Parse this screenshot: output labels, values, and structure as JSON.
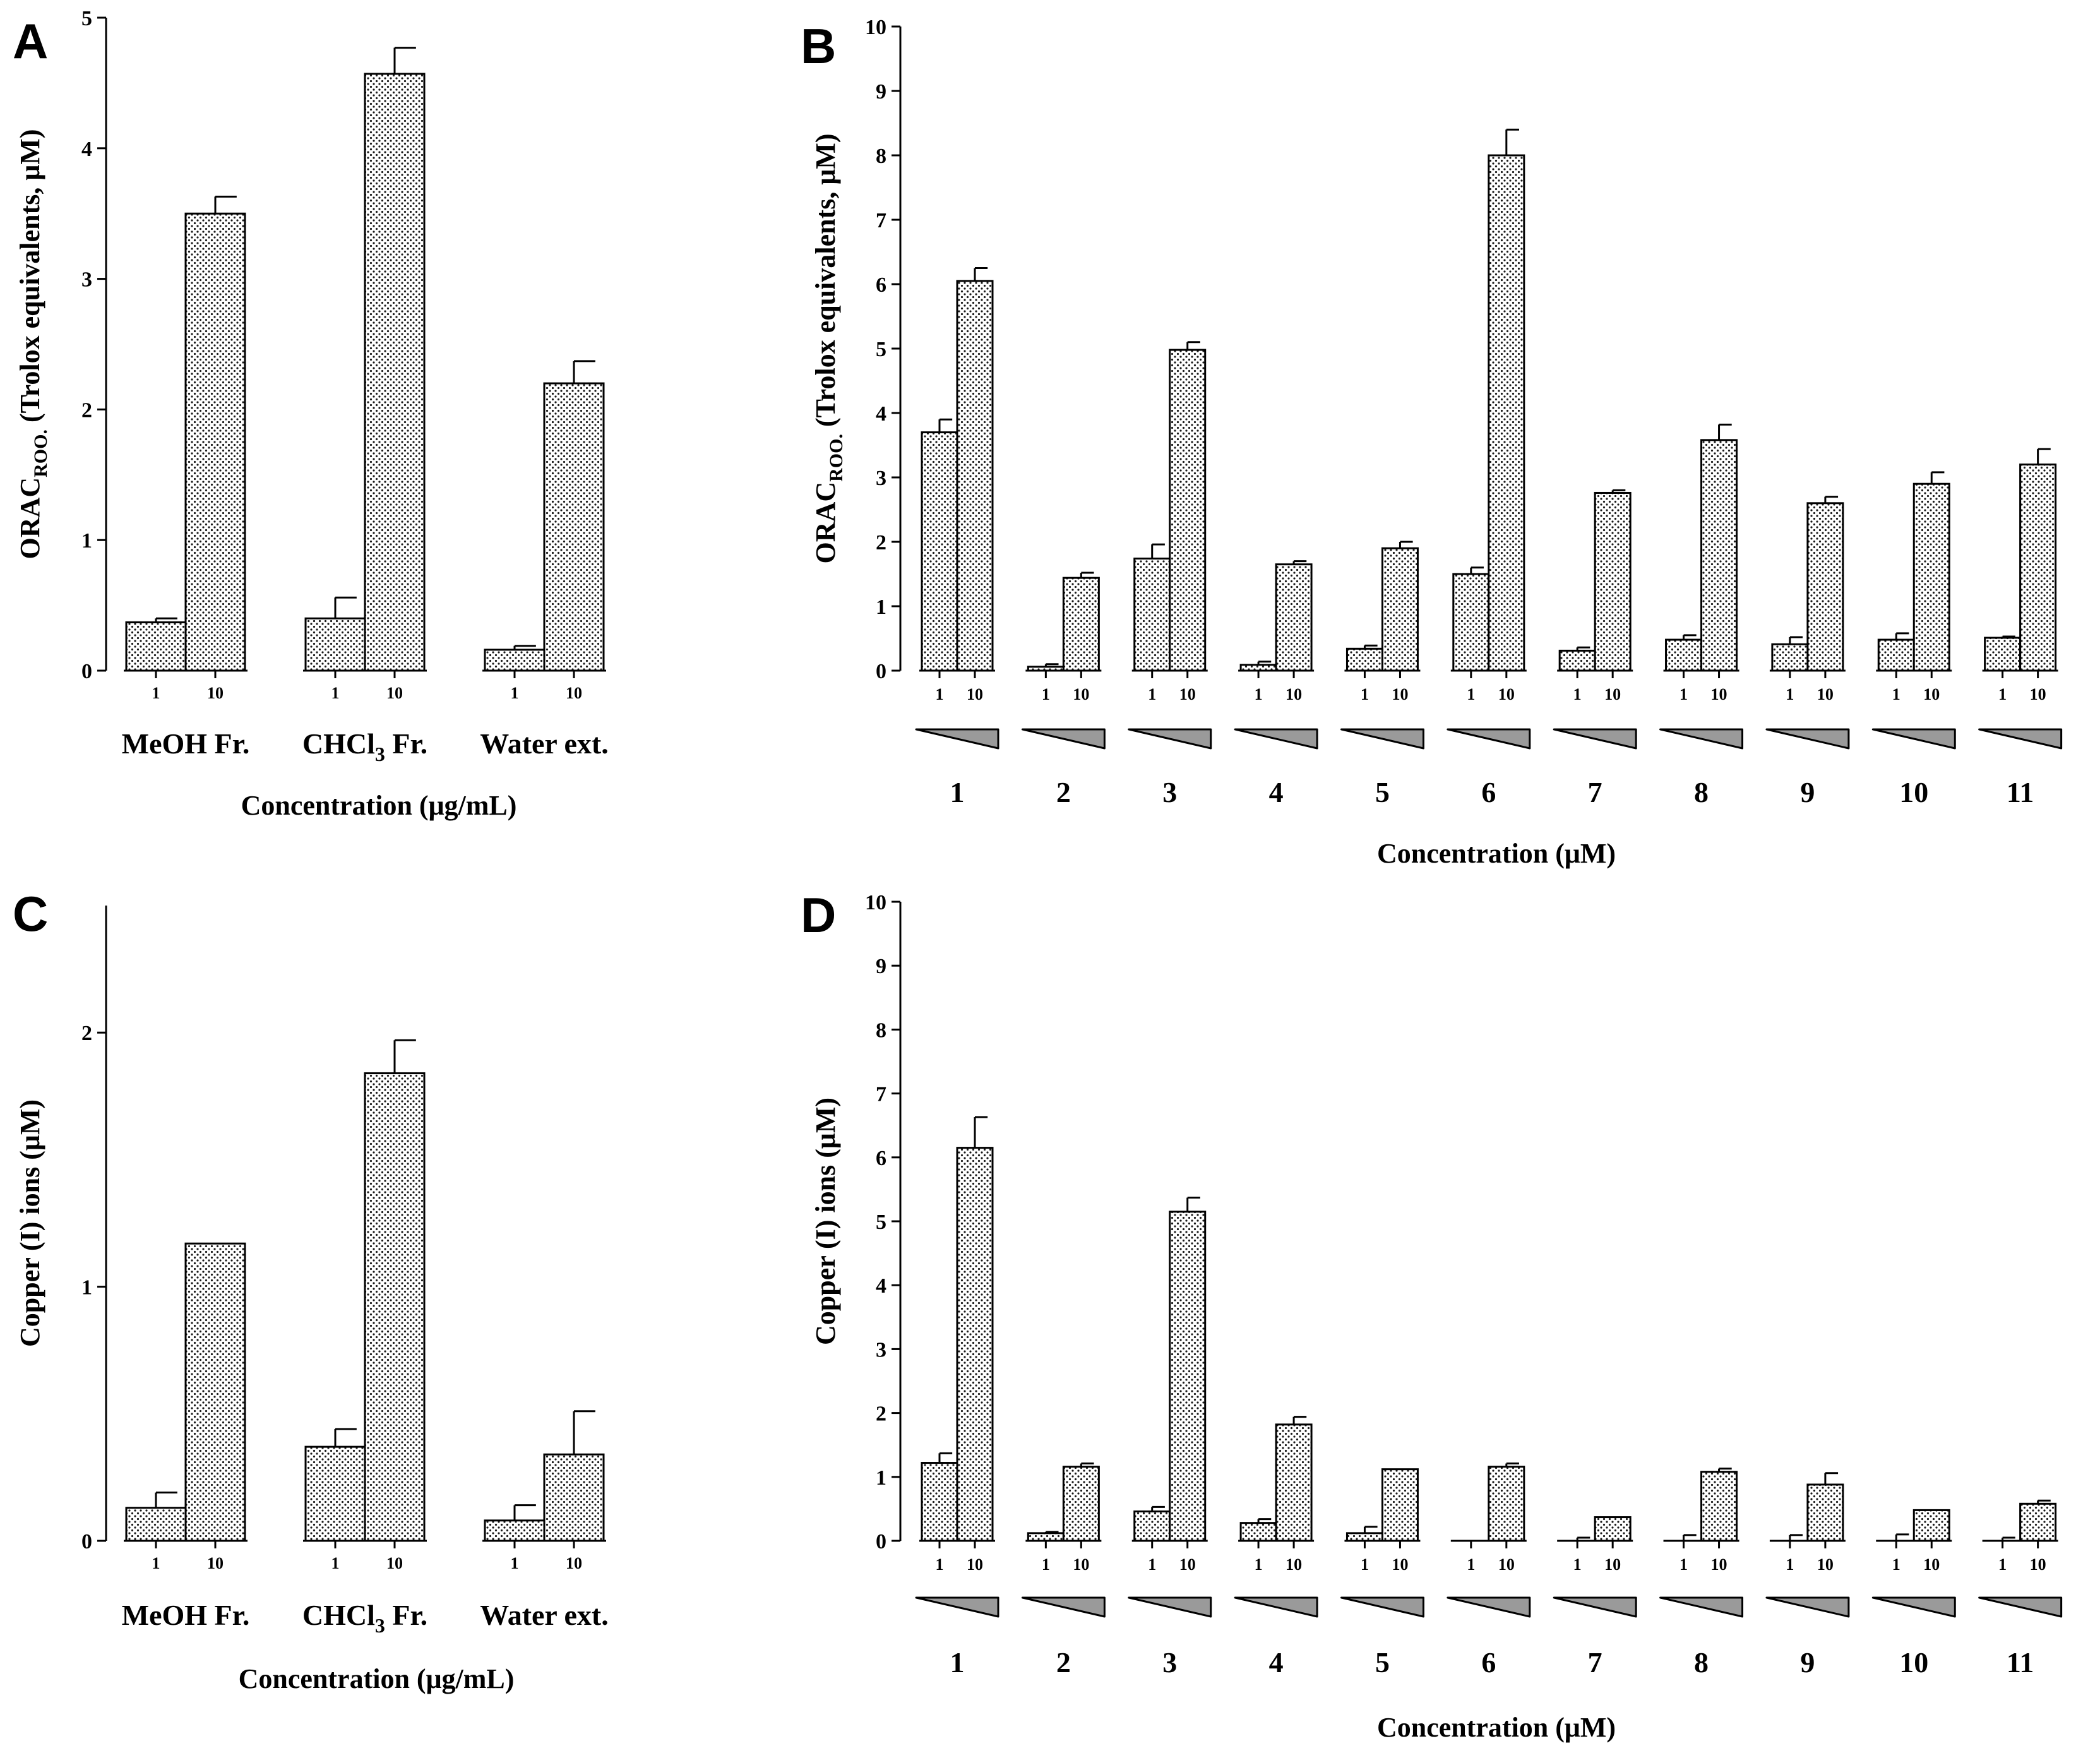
{
  "chart_data": [
    {
      "panel": "A",
      "type": "bar",
      "ylabel": "ORAC ROO. (Trolox equivalents, μM)",
      "ylabel_main": "ORAC",
      "ylabel_sub": "ROO.",
      "ylabel_rest": " (Trolox equivalents, μM)",
      "xlabel": "Concentration (μg/mL)",
      "ylim": [
        0,
        5
      ],
      "yticks": [
        0,
        1,
        2,
        3,
        4,
        5
      ],
      "levels": [
        "1",
        "10"
      ],
      "groups": [
        {
          "label": "MeOH Fr.",
          "label_main": "MeOH Fr.",
          "label_sub": "",
          "label_rest": "",
          "values": [
            0.37,
            3.5
          ],
          "errors": [
            0.03,
            0.13
          ]
        },
        {
          "label": "CHCl3 Fr.",
          "label_main": "CHCl",
          "label_sub": "3",
          "label_rest": " Fr.",
          "values": [
            0.4,
            4.57
          ],
          "errors": [
            0.16,
            0.2
          ]
        },
        {
          "label": "Water ext.",
          "label_main": "Water ext.",
          "label_sub": "",
          "label_rest": "",
          "values": [
            0.16,
            2.2
          ],
          "errors": [
            0.03,
            0.17
          ]
        }
      ]
    },
    {
      "panel": "B",
      "type": "bar",
      "ylabel": "ORAC ROO. (Trolox equivalents, μM)",
      "ylabel_main": "ORAC",
      "ylabel_sub": "ROO.",
      "ylabel_rest": " (Trolox equivalents, μM)",
      "xlabel": "Concentration (μM)",
      "ylim": [
        0,
        10
      ],
      "yticks": [
        0,
        1,
        2,
        3,
        4,
        5,
        6,
        7,
        8,
        9,
        10
      ],
      "levels": [
        "1",
        "10"
      ],
      "groups": [
        {
          "label": "1",
          "label_main": "1",
          "label_sub": "",
          "label_rest": "",
          "values": [
            3.7,
            6.05
          ],
          "errors": [
            0.2,
            0.2
          ]
        },
        {
          "label": "2",
          "label_main": "2",
          "label_sub": "",
          "label_rest": "",
          "values": [
            0.06,
            1.44
          ],
          "errors": [
            0.04,
            0.08
          ]
        },
        {
          "label": "3",
          "label_main": "3",
          "label_sub": "",
          "label_rest": "",
          "values": [
            1.74,
            4.98
          ],
          "errors": [
            0.22,
            0.12
          ]
        },
        {
          "label": "4",
          "label_main": "4",
          "label_sub": "",
          "label_rest": "",
          "values": [
            0.09,
            1.65
          ],
          "errors": [
            0.05,
            0.05
          ]
        },
        {
          "label": "5",
          "label_main": "5",
          "label_sub": "",
          "label_rest": "",
          "values": [
            0.34,
            1.9
          ],
          "errors": [
            0.05,
            0.1
          ]
        },
        {
          "label": "6",
          "label_main": "6",
          "label_sub": "",
          "label_rest": "",
          "values": [
            1.5,
            8.0
          ],
          "errors": [
            0.1,
            0.4
          ]
        },
        {
          "label": "7",
          "label_main": "7",
          "label_sub": "",
          "label_rest": "",
          "values": [
            0.31,
            2.76
          ],
          "errors": [
            0.05,
            0.04
          ]
        },
        {
          "label": "8",
          "label_main": "8",
          "label_sub": "",
          "label_rest": "",
          "values": [
            0.48,
            3.58
          ],
          "errors": [
            0.07,
            0.24
          ]
        },
        {
          "label": "9",
          "label_main": "9",
          "label_sub": "",
          "label_rest": "",
          "values": [
            0.41,
            2.6
          ],
          "errors": [
            0.11,
            0.1
          ]
        },
        {
          "label": "10",
          "label_main": "10",
          "label_sub": "",
          "label_rest": "",
          "values": [
            0.48,
            2.9
          ],
          "errors": [
            0.1,
            0.18
          ]
        },
        {
          "label": "11",
          "label_main": "11",
          "label_sub": "",
          "label_rest": "",
          "values": [
            0.51,
            3.2
          ],
          "errors": [
            0.02,
            0.24
          ]
        }
      ]
    },
    {
      "panel": "C",
      "type": "bar",
      "ylabel": "Copper (I) ions (μM)",
      "ylabel_main": "Copper (I) ions (μM)",
      "ylabel_sub": "",
      "ylabel_rest": "",
      "xlabel": "Concentration (μg/mL)",
      "ylim": [
        0,
        2.5
      ],
      "yticks": [
        0,
        1,
        2
      ],
      "levels": [
        "1",
        "10"
      ],
      "groups": [
        {
          "label": "MeOH Fr.",
          "label_main": "MeOH Fr.",
          "label_sub": "",
          "label_rest": "",
          "values": [
            0.13,
            1.17
          ],
          "errors": [
            0.06,
            0.0
          ]
        },
        {
          "label": "CHCl3 Fr.",
          "label_main": "CHCl",
          "label_sub": "3",
          "label_rest": " Fr.",
          "values": [
            0.37,
            1.84
          ],
          "errors": [
            0.07,
            0.13
          ]
        },
        {
          "label": "Water ext.",
          "label_main": "Water ext.",
          "label_sub": "",
          "label_rest": "",
          "values": [
            0.08,
            0.34
          ],
          "errors": [
            0.06,
            0.17
          ]
        }
      ]
    },
    {
      "panel": "D",
      "type": "bar",
      "ylabel": "Copper (I) ions (μM)",
      "ylabel_main": "Copper (I) ions (μM)",
      "ylabel_sub": "",
      "ylabel_rest": "",
      "xlabel": "Concentration (μM)",
      "ylim": [
        0,
        10
      ],
      "yticks": [
        0,
        1,
        2,
        3,
        4,
        5,
        6,
        7,
        8,
        9,
        10
      ],
      "levels": [
        "1",
        "10"
      ],
      "groups": [
        {
          "label": "1",
          "label_main": "1",
          "label_sub": "",
          "label_rest": "",
          "values": [
            1.22,
            6.15
          ],
          "errors": [
            0.15,
            0.48
          ]
        },
        {
          "label": "2",
          "label_main": "2",
          "label_sub": "",
          "label_rest": "",
          "values": [
            0.12,
            1.16
          ],
          "errors": [
            0.02,
            0.05
          ]
        },
        {
          "label": "3",
          "label_main": "3",
          "label_sub": "",
          "label_rest": "",
          "values": [
            0.46,
            5.15
          ],
          "errors": [
            0.07,
            0.22
          ]
        },
        {
          "label": "4",
          "label_main": "4",
          "label_sub": "",
          "label_rest": "",
          "values": [
            0.28,
            1.82
          ],
          "errors": [
            0.06,
            0.12
          ]
        },
        {
          "label": "5",
          "label_main": "5",
          "label_sub": "",
          "label_rest": "",
          "values": [
            0.12,
            1.12
          ],
          "errors": [
            0.1,
            0.0
          ]
        },
        {
          "label": "6",
          "label_main": "6",
          "label_sub": "",
          "label_rest": "",
          "values": [
            0.0,
            1.16
          ],
          "errors": [
            0.0,
            0.05
          ]
        },
        {
          "label": "7",
          "label_main": "7",
          "label_sub": "",
          "label_rest": "",
          "values": [
            0.0,
            0.37
          ],
          "errors": [
            0.05,
            0.0
          ]
        },
        {
          "label": "8",
          "label_main": "8",
          "label_sub": "",
          "label_rest": "",
          "values": [
            0.0,
            1.08
          ],
          "errors": [
            0.09,
            0.05
          ]
        },
        {
          "label": "9",
          "label_main": "9",
          "label_sub": "",
          "label_rest": "",
          "values": [
            0.0,
            0.88
          ],
          "errors": [
            0.09,
            0.18
          ]
        },
        {
          "label": "10",
          "label_main": "10",
          "label_sub": "",
          "label_rest": "",
          "values": [
            0.0,
            0.48
          ],
          "errors": [
            0.1,
            0.0
          ]
        },
        {
          "label": "11",
          "label_main": "11",
          "label_sub": "",
          "label_rest": "",
          "values": [
            0.0,
            0.58
          ],
          "errors": [
            0.05,
            0.05
          ]
        }
      ]
    }
  ]
}
